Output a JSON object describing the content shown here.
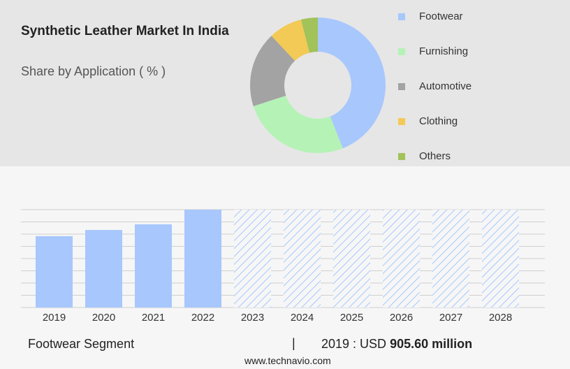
{
  "chart_data": [
    {
      "type": "donut",
      "title": "Synthetic Leather Market In India",
      "subtitle": "Share by Application ( % )",
      "categories": [
        "Footwear",
        "Furnishing",
        "Automotive",
        "Clothing",
        "Others"
      ],
      "values": [
        44,
        26,
        18,
        8,
        4
      ],
      "colors": [
        "#a7c7fd",
        "#b5f2b6",
        "#a3a3a3",
        "#f2ca55",
        "#a2c25a"
      ],
      "legend": "right"
    },
    {
      "type": "bar",
      "categories": [
        "2019",
        "2020",
        "2021",
        "2022",
        "2023",
        "2024",
        "2025",
        "2026",
        "2027",
        "2028"
      ],
      "values": [
        5.83,
        6.34,
        6.8,
        8,
        null,
        null,
        null,
        null,
        null,
        null
      ],
      "color": "#a7c7fd",
      "ylim": [
        0,
        8
      ],
      "yticks": [
        0,
        1,
        2,
        3,
        4,
        5,
        6,
        7,
        8
      ],
      "grid": true
    }
  ],
  "footer": {
    "segment": "Footwear Segment",
    "separator": "|",
    "prefix": "2019 : USD",
    "amount": "905.60 million",
    "source": "www.technavio.com"
  }
}
